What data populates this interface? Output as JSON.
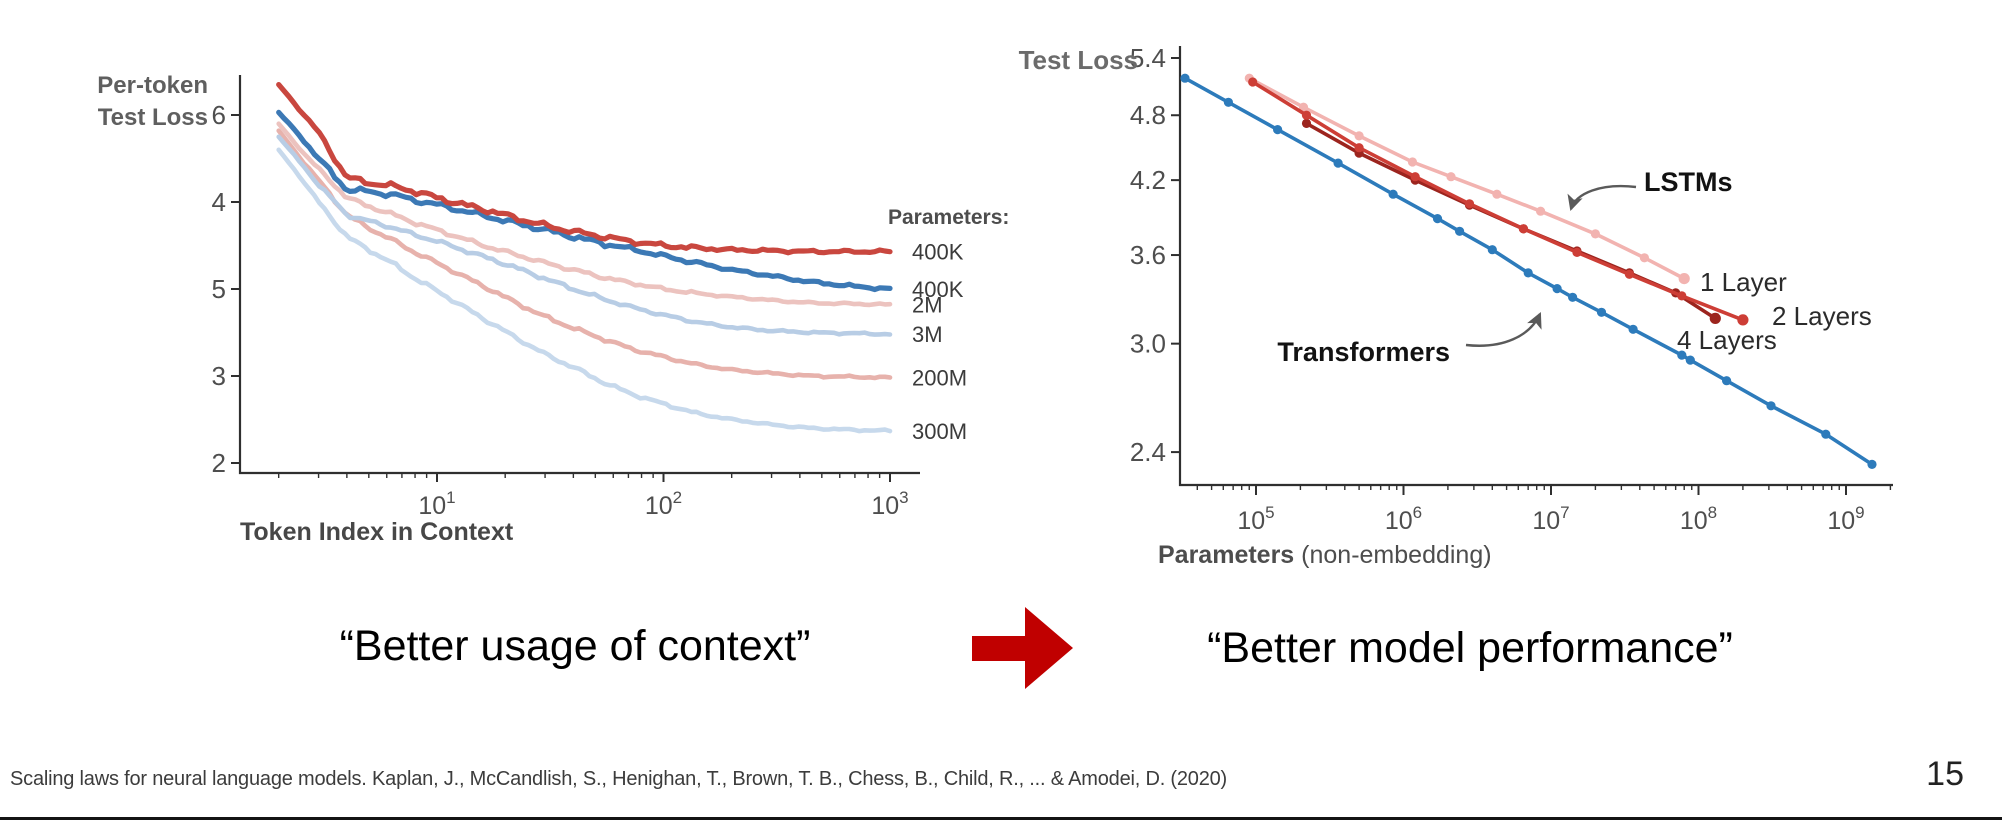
{
  "slide": {
    "left_quote": "“Better usage of context”",
    "right_quote": "“Better model performance”",
    "citation": "Scaling laws for neural language models. Kaplan, J., McCandlish, S., Henighan, T., Brown, T. B., Chess, B., Child, R., ... & Amodei, D. (2020)",
    "page_number": "15",
    "arrow_color": "#c00000"
  },
  "chart_data": [
    {
      "type": "line",
      "title_line1": "Per-token",
      "title_line2": "Test Loss",
      "xlabel": "Token Index in Context",
      "x_scale": "log",
      "x_ticks": [
        "10^1",
        "10^2",
        "10^3"
      ],
      "y_tick_labels": [
        "6",
        "4",
        "5",
        "3",
        "2"
      ],
      "x_range": [
        1.35,
        1300
      ],
      "y_range_loss": [
        2,
        6.5
      ],
      "grid": false,
      "legend_title": "Parameters:",
      "legend_position": "right-of-curves",
      "x": [
        2,
        2.5,
        3,
        4,
        5,
        6.5,
        8,
        10,
        13,
        17,
        22,
        30,
        40,
        55,
        75,
        100,
        140,
        200,
        300,
        450,
        700,
        1000
      ],
      "series": [
        {
          "name": "400K",
          "color": "#c9473f",
          "values": [
            6.35,
            6.05,
            5.8,
            5.28,
            5.22,
            5.18,
            5.12,
            5.05,
            4.97,
            4.9,
            4.82,
            4.73,
            4.66,
            4.6,
            4.54,
            4.5,
            4.47,
            4.45,
            4.44,
            4.43,
            4.43,
            4.43
          ]
        },
        {
          "name": "400K",
          "color": "#3c79b5",
          "values": [
            6.03,
            5.75,
            5.5,
            5.14,
            5.12,
            5.08,
            5.02,
            4.97,
            4.9,
            4.83,
            4.76,
            4.68,
            4.6,
            4.52,
            4.45,
            4.38,
            4.3,
            4.22,
            4.15,
            4.08,
            4.03,
            4.0
          ]
        },
        {
          "name": "2M",
          "color": "#ecc3bf",
          "values": [
            5.9,
            5.6,
            5.38,
            5.05,
            4.95,
            4.85,
            4.76,
            4.68,
            4.58,
            4.48,
            4.4,
            4.3,
            4.22,
            4.13,
            4.06,
            4.0,
            3.95,
            3.91,
            3.87,
            3.84,
            3.83,
            3.82
          ]
        },
        {
          "name": "3M",
          "color": "#b8cde5",
          "values": [
            5.75,
            5.45,
            5.2,
            4.85,
            4.78,
            4.7,
            4.62,
            4.55,
            4.45,
            4.35,
            4.25,
            4.12,
            4.0,
            3.88,
            3.78,
            3.7,
            3.62,
            3.56,
            3.52,
            3.5,
            3.49,
            3.48
          ]
        },
        {
          "name": "200M",
          "color": "#e7b2ac",
          "values": [
            5.82,
            5.5,
            5.25,
            4.85,
            4.7,
            4.55,
            4.42,
            4.3,
            4.15,
            4.0,
            3.85,
            3.68,
            3.55,
            3.42,
            3.3,
            3.22,
            3.13,
            3.07,
            3.03,
            3.0,
            2.99,
            2.98
          ]
        },
        {
          "name": "300M",
          "color": "#c7d9ec",
          "values": [
            5.6,
            5.28,
            5.0,
            4.6,
            4.45,
            4.28,
            4.12,
            3.98,
            3.8,
            3.62,
            3.45,
            3.25,
            3.1,
            2.92,
            2.78,
            2.68,
            2.57,
            2.5,
            2.44,
            2.4,
            2.38,
            2.37
          ]
        }
      ]
    },
    {
      "type": "line",
      "title": "Test Loss",
      "xlabel_bold": "Parameters",
      "xlabel_rest": " (non-embedding)",
      "x_scale": "log",
      "y_scale": "log",
      "x_ticks": [
        "10^5",
        "10^6",
        "10^7",
        "10^8",
        "10^9"
      ],
      "y_ticks": [
        "5.4",
        "4.8",
        "4.2",
        "3.6",
        "3.0",
        "2.4"
      ],
      "x_range": [
        30000.0,
        2100000000.0
      ],
      "grid": false,
      "annotations": {
        "lstms": "LSTMs",
        "transformers": "Transformers",
        "layer1": "1 Layer",
        "layer2": "2 Layers",
        "layer4": "4 Layers"
      },
      "series": [
        {
          "name": "Transformers",
          "color": "#2d7bbb",
          "marker": "circle",
          "x": [
            33000.0,
            65000.0,
            140000.0,
            360000.0,
            850000.0,
            1700000.0,
            2400000.0,
            4000000.0,
            7000000.0,
            11000000.0,
            14000000.0,
            22000000.0,
            36000000.0,
            77000000.0,
            88000000.0,
            155000000.0,
            310000000.0,
            730000000.0,
            1500000000.0
          ],
          "y": [
            5.18,
            4.93,
            4.66,
            4.35,
            4.08,
            3.88,
            3.78,
            3.64,
            3.47,
            3.36,
            3.3,
            3.2,
            3.09,
            2.93,
            2.9,
            2.78,
            2.64,
            2.49,
            2.34
          ]
        },
        {
          "name": "1 Layer",
          "color": "#f2b3b0",
          "marker": "circle",
          "x": [
            90000.0,
            210000.0,
            500000.0,
            1150000.0,
            2100000.0,
            4300000.0,
            8500000.0,
            20000000.0,
            43000000.0,
            80000000.0
          ],
          "y": [
            5.18,
            4.88,
            4.6,
            4.36,
            4.23,
            4.08,
            3.94,
            3.76,
            3.58,
            3.43
          ]
        },
        {
          "name": "2 Layers",
          "color": "#cd3e36",
          "marker": "circle",
          "x": [
            95000.0,
            220000.0,
            500000.0,
            1200000.0,
            2800000.0,
            6500000.0,
            15000000.0,
            34000000.0,
            77000000.0,
            200000000.0
          ],
          "y": [
            5.14,
            4.8,
            4.49,
            4.23,
            4.0,
            3.8,
            3.62,
            3.46,
            3.31,
            3.15
          ]
        },
        {
          "name": "4 Layers",
          "color": "#9c241e",
          "marker": "circle",
          "x": [
            220000.0,
            500000.0,
            1200000.0,
            2800000.0,
            6500000.0,
            15000000.0,
            34000000.0,
            70000000.0,
            130000000.0
          ],
          "y": [
            4.72,
            4.44,
            4.2,
            3.99,
            3.8,
            3.63,
            3.47,
            3.33,
            3.16
          ]
        }
      ]
    }
  ]
}
